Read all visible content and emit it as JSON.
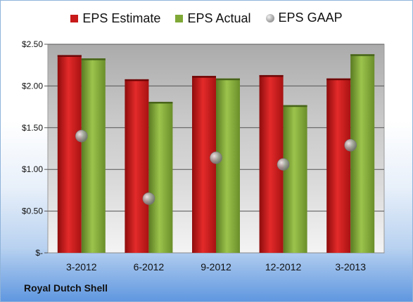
{
  "chart_data": {
    "type": "bar",
    "categories": [
      "3-2012",
      "6-2012",
      "9-2012",
      "12-2012",
      "3-2013"
    ],
    "series": [
      {
        "name": "EPS Estimate",
        "type": "bar",
        "color": "#c81a1a",
        "values": [
          2.37,
          2.08,
          2.12,
          2.13,
          2.09
        ]
      },
      {
        "name": "EPS Actual",
        "type": "bar",
        "color": "#7fa836",
        "values": [
          2.33,
          1.81,
          2.09,
          1.77,
          2.38
        ]
      },
      {
        "name": "EPS GAAP",
        "type": "marker",
        "color": "#9a9a9a",
        "values": [
          1.4,
          0.65,
          1.14,
          1.06,
          1.29
        ]
      }
    ],
    "ylim": [
      0,
      2.5
    ],
    "yticks": [
      0,
      0.5,
      1.0,
      1.5,
      2.0,
      2.5
    ],
    "ytick_labels": [
      "$-",
      "$0.50",
      "$1.00",
      "$1.50",
      "$2.00",
      "$2.50"
    ],
    "grid": true,
    "legend_position": "top"
  },
  "footer": {
    "company": "Royal Dutch Shell"
  }
}
